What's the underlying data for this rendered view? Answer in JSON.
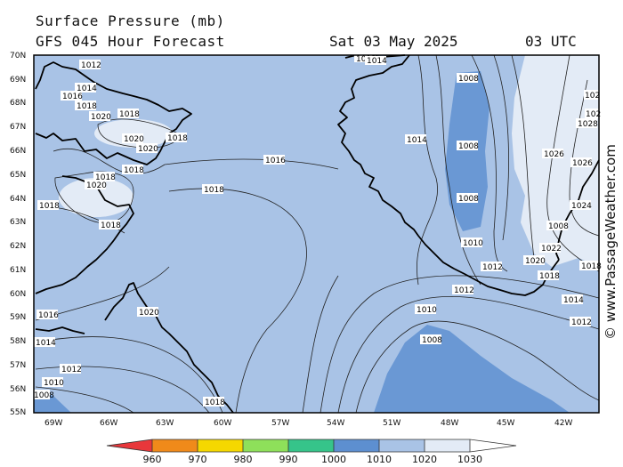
{
  "header": {
    "title": "Surface Pressure (mb)",
    "subtitle": "GFS 045 Hour Forecast",
    "date": "Sat 03 May 2025",
    "time": "03 UTC"
  },
  "credit": "© www.PassageWeather.com",
  "axes": {
    "lat_labels": [
      "70N",
      "69N",
      "68N",
      "67N",
      "66N",
      "65N",
      "64N",
      "63N",
      "62N",
      "61N",
      "60N",
      "59N",
      "58N",
      "57N",
      "56N",
      "55N"
    ],
    "lon_labels": [
      "69W",
      "66W",
      "63W",
      "60W",
      "57W",
      "54W",
      "51W",
      "48W",
      "45W",
      "42W"
    ]
  },
  "legend": {
    "values": [
      "960",
      "970",
      "980",
      "990",
      "1000",
      "1010",
      "1020",
      "1030"
    ],
    "colors": [
      "#e8373b",
      "#f08a1a",
      "#f5d800",
      "#8ee05a",
      "#36c48a",
      "#5d8fd0",
      "#a9c3e6",
      "#e3ebf6"
    ]
  },
  "isobars": [
    {
      "label": "1012",
      "pos": "top-left"
    },
    {
      "label": "1014",
      "pos": "top-left"
    },
    {
      "label": "1016",
      "pos": "top-left"
    },
    {
      "label": "1018",
      "pos": "top-left"
    },
    {
      "label": "1020",
      "pos": "baffin"
    },
    {
      "label": "1018",
      "pos": "baffin"
    },
    {
      "label": "1020",
      "pos": "baffin"
    },
    {
      "label": "1020",
      "pos": "baffin"
    },
    {
      "label": "1018",
      "pos": "baffin"
    },
    {
      "label": "1018",
      "pos": "baffin"
    },
    {
      "label": "1018",
      "pos": "hudson"
    },
    {
      "label": "1020",
      "pos": "hudson"
    },
    {
      "label": "1018",
      "pos": "hudson"
    },
    {
      "label": "1018",
      "pos": "hudson"
    },
    {
      "label": "1016",
      "pos": "davis"
    },
    {
      "label": "1018",
      "pos": "davis"
    },
    {
      "label": "1016",
      "pos": "labrador"
    },
    {
      "label": "1014",
      "pos": "labrador"
    },
    {
      "label": "1020",
      "pos": "labrador"
    },
    {
      "label": "1012",
      "pos": "labrador"
    },
    {
      "label": "1010",
      "pos": "labrador"
    },
    {
      "label": "1008",
      "pos": "labrador"
    },
    {
      "label": "1018",
      "pos": "south"
    },
    {
      "label": "1014",
      "pos": "greenland"
    },
    {
      "label": "1008",
      "pos": "denmark"
    },
    {
      "label": "1008",
      "pos": "denmark"
    },
    {
      "label": "1008",
      "pos": "denmark"
    },
    {
      "label": "1010",
      "pos": "denmark"
    },
    {
      "label": "1012",
      "pos": "cape"
    },
    {
      "label": "1012",
      "pos": "cape"
    },
    {
      "label": "1010",
      "pos": "sea"
    },
    {
      "label": "1008",
      "pos": "sea"
    },
    {
      "label": "1020",
      "pos": "east"
    },
    {
      "label": "1018",
      "pos": "east"
    },
    {
      "label": "1014",
      "pos": "east"
    },
    {
      "label": "1012",
      "pos": "east"
    },
    {
      "label": "1022",
      "pos": "east"
    },
    {
      "label": "1024",
      "pos": "east"
    },
    {
      "label": "1026",
      "pos": "east"
    },
    {
      "label": "1026",
      "pos": "east"
    },
    {
      "label": "1028",
      "pos": "east"
    },
    {
      "label": "102",
      "pos": "east"
    },
    {
      "label": "102",
      "pos": "east"
    },
    {
      "label": "1018",
      "pos": "east"
    },
    {
      "label": "1013",
      "pos": "top"
    },
    {
      "label": "1014",
      "pos": "top"
    },
    {
      "label": "1008",
      "pos": "denmark"
    }
  ]
}
